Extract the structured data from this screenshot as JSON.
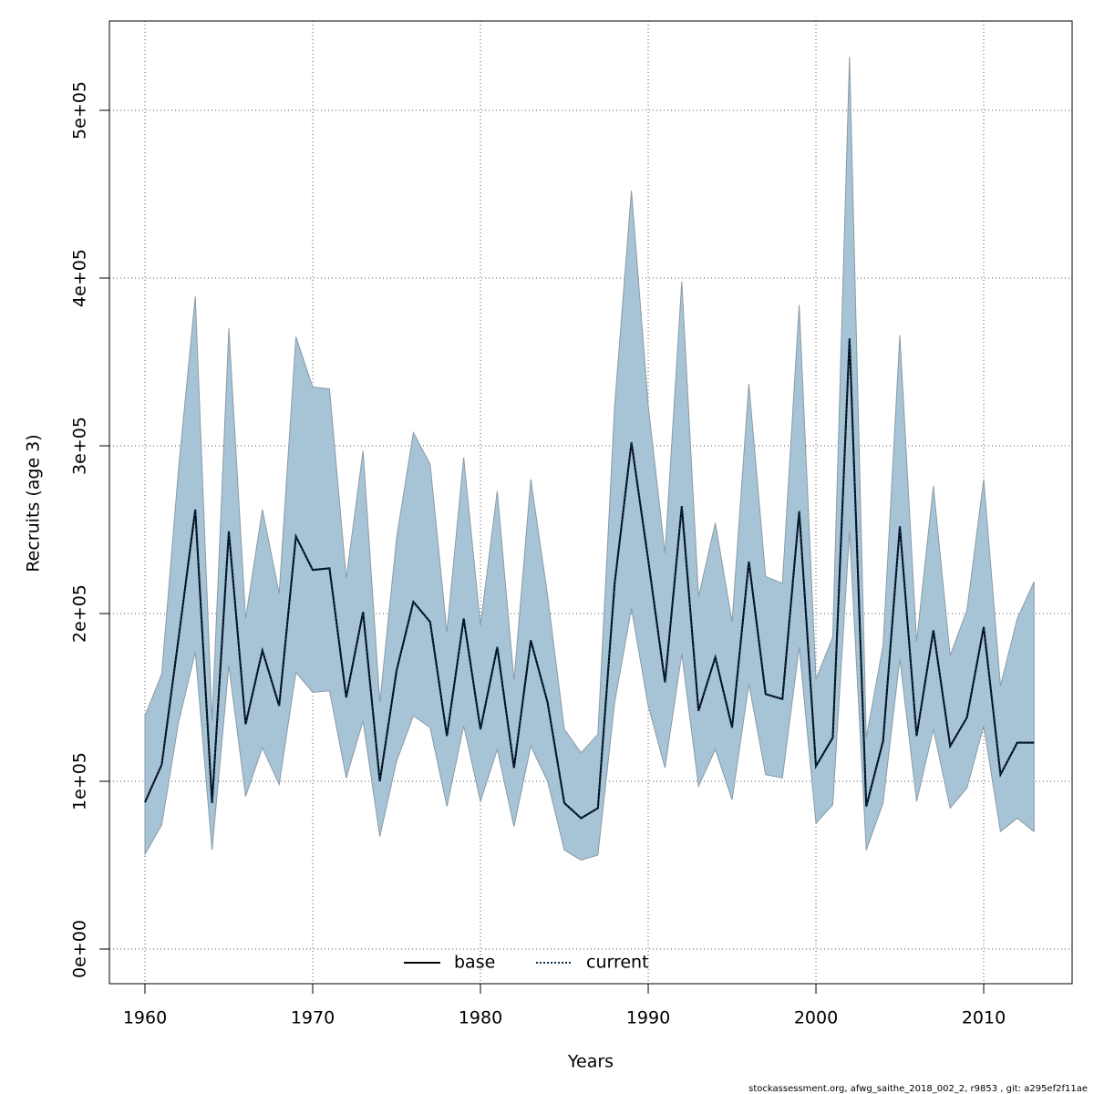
{
  "chart_data": {
    "type": "band-line",
    "xlabel": "Years",
    "ylabel": "Recruits (age 3)",
    "footer": "stockassessment.org, afwg_saithe_2018_002_2, r9853 , git: a295ef2f11ae",
    "x": [
      1960,
      1961,
      1962,
      1963,
      1964,
      1965,
      1966,
      1967,
      1968,
      1969,
      1970,
      1971,
      1972,
      1973,
      1974,
      1975,
      1976,
      1977,
      1978,
      1979,
      1980,
      1981,
      1982,
      1983,
      1984,
      1985,
      1986,
      1987,
      1988,
      1989,
      1990,
      1991,
      1992,
      1993,
      1994,
      1995,
      1996,
      1997,
      1998,
      1999,
      2000,
      2001,
      2002,
      2003,
      2004,
      2005,
      2006,
      2007,
      2008,
      2009,
      2010,
      2011,
      2012,
      2013
    ],
    "band": {
      "color": "#a6c4d6",
      "edge": "#8a9aa5",
      "upper": [
        139000,
        164000,
        286000,
        389000,
        136000,
        370000,
        197000,
        262000,
        212000,
        365000,
        335000,
        334000,
        221000,
        297000,
        147000,
        245000,
        308000,
        289000,
        189000,
        293000,
        193000,
        273000,
        160000,
        280000,
        211000,
        131000,
        117000,
        128000,
        324000,
        452000,
        324000,
        236000,
        398000,
        210000,
        254000,
        195000,
        337000,
        222000,
        218000,
        384000,
        161000,
        186000,
        532000,
        126000,
        181000,
        366000,
        183000,
        276000,
        175000,
        202000,
        280000,
        157000,
        197000,
        219000
      ],
      "lower": [
        56500,
        74000,
        135000,
        177000,
        59000,
        169000,
        91000,
        120000,
        98000,
        165000,
        153000,
        154000,
        102000,
        136000,
        67000,
        112000,
        139000,
        132000,
        85000,
        133000,
        88000,
        119000,
        73000,
        121000,
        100000,
        59000,
        53000,
        56000,
        147000,
        203000,
        145000,
        108000,
        176000,
        97000,
        119000,
        89000,
        158000,
        104000,
        102000,
        180000,
        75000,
        86000,
        249000,
        59000,
        87000,
        173000,
        88000,
        131000,
        84000,
        96000,
        133000,
        70000,
        78000,
        70000
      ]
    },
    "series": [
      {
        "name": "base",
        "color": "#000000",
        "dash": false,
        "values": [
          87500,
          110000,
          185000,
          262000,
          87000,
          249000,
          134000,
          178000,
          145000,
          246000,
          226000,
          227000,
          150000,
          201000,
          100000,
          166000,
          207000,
          195000,
          127000,
          197000,
          131000,
          180000,
          108000,
          184000,
          147000,
          87000,
          78000,
          84000,
          218000,
          302000,
          232000,
          159000,
          264000,
          142000,
          174000,
          132000,
          231000,
          152000,
          149000,
          261000,
          109000,
          126000,
          364000,
          85000,
          124000,
          252000,
          127000,
          190000,
          121000,
          138000,
          192000,
          104000,
          123000,
          123000
        ]
      },
      {
        "name": "current",
        "color": "#0a2d50",
        "dash": true,
        "values": [
          87500,
          110000,
          185000,
          262000,
          87000,
          249000,
          134000,
          178000,
          145000,
          246000,
          226000,
          227000,
          150000,
          201000,
          100000,
          166000,
          207000,
          195000,
          127000,
          197000,
          131000,
          180000,
          108000,
          184000,
          147000,
          87000,
          78000,
          84000,
          218000,
          302000,
          232000,
          159000,
          264000,
          142000,
          174000,
          132000,
          231000,
          152000,
          149000,
          261000,
          109000,
          126000,
          364000,
          85000,
          124000,
          252000,
          127000,
          190000,
          121000,
          138000,
          192000,
          104000,
          123000,
          123000
        ]
      }
    ],
    "xlim": [
      1957.88,
      2015.27
    ],
    "xticks": [
      1960,
      1970,
      1980,
      1990,
      2000,
      2010
    ],
    "ylim": [
      -20652,
      553261
    ],
    "yticks": [
      {
        "value": 0,
        "label": "0e+00"
      },
      {
        "value": 100000,
        "label": "1e+05"
      },
      {
        "value": 200000,
        "label": "2e+05"
      },
      {
        "value": 300000,
        "label": "3e+05"
      },
      {
        "value": 400000,
        "label": "4e+05"
      },
      {
        "value": 500000,
        "label": "5e+05"
      }
    ],
    "grid": true,
    "legend": "bottom"
  }
}
